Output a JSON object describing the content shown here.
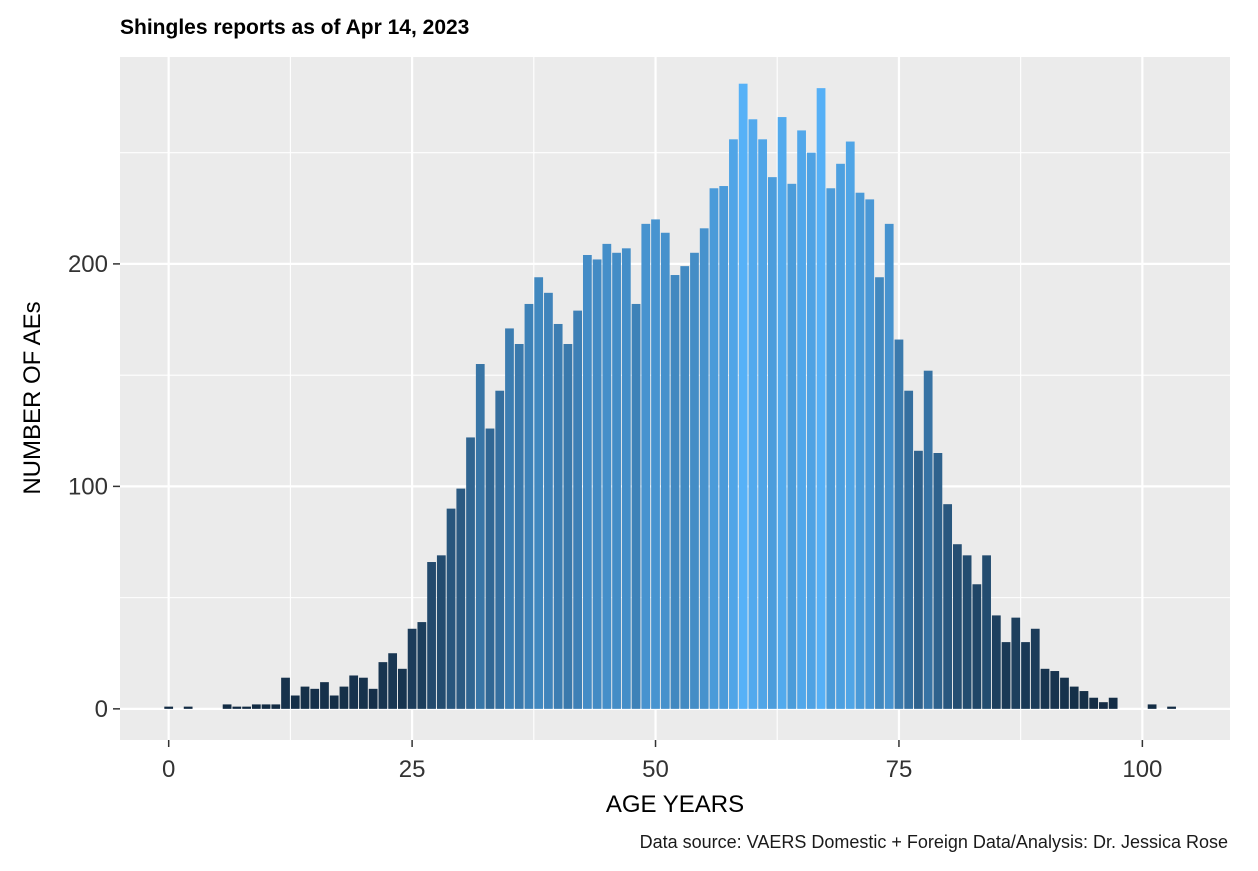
{
  "chart_data": {
    "type": "bar",
    "title": "Shingles reports as of Apr 14, 2023",
    "xlabel": "AGE YEARS",
    "ylabel": "NUMBER OF AEs",
    "caption": "Data source: VAERS Domestic + Foreign Data/Analysis: Dr. Jessica Rose",
    "xlim": [
      -5,
      109
    ],
    "ylim": [
      -14,
      293
    ],
    "x_ticks": [
      0,
      25,
      50,
      75,
      100
    ],
    "x_tick_labels": [
      "0",
      "25",
      "50",
      "75",
      "100"
    ],
    "y_ticks": [
      0,
      100,
      200
    ],
    "y_tick_labels": [
      "0",
      "100",
      "200"
    ],
    "grid": true,
    "legend": "none",
    "fill_scale": {
      "low_color": "#132b43",
      "high_color": "#56b1f7",
      "mapped_to": "value"
    },
    "x": [
      0,
      1,
      2,
      3,
      4,
      5,
      6,
      7,
      8,
      9,
      10,
      11,
      12,
      13,
      14,
      15,
      16,
      17,
      18,
      19,
      20,
      21,
      22,
      23,
      24,
      25,
      26,
      27,
      28,
      29,
      30,
      31,
      32,
      33,
      34,
      35,
      36,
      37,
      38,
      39,
      40,
      41,
      42,
      43,
      44,
      45,
      46,
      47,
      48,
      49,
      50,
      51,
      52,
      53,
      54,
      55,
      56,
      57,
      58,
      59,
      60,
      61,
      62,
      63,
      64,
      65,
      66,
      67,
      68,
      69,
      70,
      71,
      72,
      73,
      74,
      75,
      76,
      77,
      78,
      79,
      80,
      81,
      82,
      83,
      84,
      85,
      86,
      87,
      88,
      89,
      90,
      91,
      92,
      93,
      94,
      95,
      96,
      97,
      98,
      99,
      100,
      101,
      102,
      103
    ],
    "values": [
      1,
      0,
      1,
      0,
      0,
      0,
      2,
      1,
      1,
      2,
      2,
      2,
      14,
      6,
      10,
      9,
      12,
      6,
      10,
      15,
      14,
      9,
      21,
      25,
      18,
      36,
      39,
      66,
      69,
      90,
      99,
      122,
      155,
      126,
      143,
      171,
      164,
      182,
      194,
      187,
      173,
      164,
      179,
      204,
      202,
      209,
      205,
      207,
      182,
      218,
      220,
      214,
      195,
      199,
      205,
      216,
      234,
      235,
      256,
      281,
      265,
      256,
      239,
      266,
      236,
      260,
      250,
      279,
      234,
      245,
      255,
      232,
      229,
      194,
      218,
      166,
      143,
      116,
      152,
      115,
      92,
      74,
      69,
      56,
      69,
      42,
      30,
      41,
      30,
      36,
      18,
      17,
      14,
      10,
      8,
      5,
      3,
      5,
      0,
      0,
      0,
      2,
      0,
      1
    ]
  }
}
